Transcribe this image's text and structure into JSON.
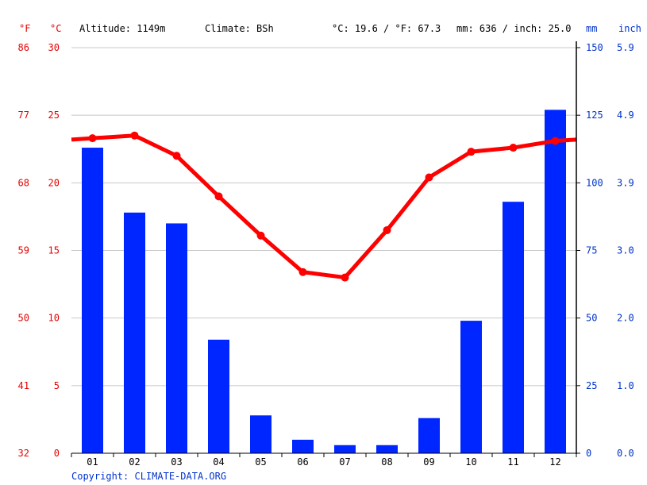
{
  "header": {
    "unit_f": "°F",
    "unit_c": "°C",
    "altitude": "Altitude: 1149m",
    "climate": "Climate: BSh",
    "temp_avg": "°C: 19.6 / °F: 67.3",
    "precip_avg": "mm: 636 / inch: 25.0",
    "unit_mm": "mm",
    "unit_inch": "inch"
  },
  "copyright": "Copyright: CLIMATE-DATA.ORG",
  "colors": {
    "temperature": "#ff0000",
    "precipitation": "#0026ff",
    "left_axis_text": "#e60000",
    "right_axis_text": "#0033cc",
    "grid": "#c8c8c8"
  },
  "chart_data": {
    "type": "bar",
    "categories": [
      "01",
      "02",
      "03",
      "04",
      "05",
      "06",
      "07",
      "08",
      "09",
      "10",
      "11",
      "12"
    ],
    "precipitation_mm": [
      113,
      89,
      85,
      42,
      14,
      5,
      3,
      3,
      13,
      49,
      93,
      127
    ],
    "temperature_c": [
      23.3,
      23.5,
      22.0,
      19.0,
      16.1,
      13.4,
      13.0,
      16.5,
      20.4,
      22.3,
      22.6,
      23.1
    ],
    "temperature_c_left_edge": 23.2,
    "temperature_c_right_edge": 23.2,
    "left_axis_c": {
      "ticks": [
        "30",
        "25",
        "20",
        "15",
        "10",
        "5",
        "0"
      ],
      "ylim": [
        0,
        30
      ]
    },
    "left_axis_f": {
      "ticks": [
        "86",
        "77",
        "68",
        "59",
        "50",
        "41",
        "32"
      ]
    },
    "right_axis_mm": {
      "ticks": [
        "150",
        "125",
        "100",
        "75",
        "50",
        "25",
        "0"
      ],
      "ylim": [
        0,
        150
      ]
    },
    "right_axis_inch": {
      "ticks": [
        "5.9",
        "4.9",
        "3.9",
        "3.0",
        "2.0",
        "1.0",
        "0.0"
      ]
    },
    "grid": true
  }
}
